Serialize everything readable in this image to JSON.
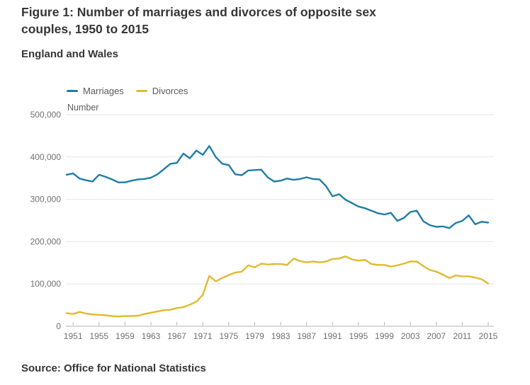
{
  "header": {
    "title": "Figure 1: Number of marriages and divorces of opposite sex couples, 1950 to 2015",
    "subtitle": "England and Wales"
  },
  "footer": {
    "source": "Source: Office for National Statistics"
  },
  "colors": {
    "marriages_line": "#207CA6",
    "divorces_line": "#E0BA2F",
    "gridline": "#e4e4e4",
    "axis": "#b3b3b3",
    "text_dark": "#363636",
    "text_gray": "#6f6f6f"
  },
  "chart_data": {
    "type": "line",
    "title": "Figure 1: Number of marriages and divorces of opposite sex couples, 1950 to 2015",
    "subtitle": "England and Wales",
    "xlabel": "",
    "ylabel": "Number",
    "xlim": [
      1950,
      2015
    ],
    "ylim": [
      0,
      500000
    ],
    "grid": true,
    "legend_position": "top-left",
    "x_ticks": [
      1951,
      1955,
      1959,
      1963,
      1967,
      1971,
      1975,
      1979,
      1983,
      1987,
      1991,
      1995,
      1999,
      2003,
      2007,
      2011,
      2015
    ],
    "y_ticks": [
      0,
      100000,
      200000,
      300000,
      400000,
      500000
    ],
    "y_tick_labels": [
      "0",
      "100,000",
      "200,000",
      "300,000",
      "400,000",
      "500,000"
    ],
    "x": [
      1950,
      1951,
      1952,
      1953,
      1954,
      1955,
      1956,
      1957,
      1958,
      1959,
      1960,
      1961,
      1962,
      1963,
      1964,
      1965,
      1966,
      1967,
      1968,
      1969,
      1970,
      1971,
      1972,
      1973,
      1974,
      1975,
      1976,
      1977,
      1978,
      1979,
      1980,
      1981,
      1982,
      1983,
      1984,
      1985,
      1986,
      1987,
      1988,
      1989,
      1990,
      1991,
      1992,
      1993,
      1994,
      1995,
      1996,
      1997,
      1998,
      1999,
      2000,
      2001,
      2002,
      2003,
      2004,
      2005,
      2006,
      2007,
      2008,
      2009,
      2010,
      2011,
      2012,
      2013,
      2014,
      2015
    ],
    "series": [
      {
        "name": "Marriages",
        "color": "#207CA6",
        "values": [
          358000,
          361000,
          349000,
          345000,
          342000,
          358000,
          353000,
          347000,
          340000,
          340000,
          344000,
          347000,
          348000,
          351000,
          359000,
          371000,
          384000,
          386000,
          408000,
          397000,
          415000,
          405000,
          426000,
          400000,
          384000,
          381000,
          359000,
          357000,
          368000,
          369000,
          370000,
          352000,
          342000,
          344000,
          349000,
          346000,
          348000,
          352000,
          348000,
          347000,
          331000,
          307000,
          312000,
          299000,
          291000,
          283000,
          279000,
          273000,
          267000,
          264000,
          268000,
          249000,
          256000,
          270000,
          273000,
          248000,
          239000,
          235000,
          236000,
          232000,
          244000,
          249000,
          262000,
          241000,
          247000,
          245000
        ]
      },
      {
        "name": "Divorces",
        "color": "#E0BA2F",
        "values": [
          31000,
          29000,
          34000,
          30000,
          28000,
          27000,
          26000,
          24000,
          23000,
          24000,
          24000,
          25000,
          29000,
          32000,
          35000,
          38000,
          39000,
          43000,
          45000,
          51000,
          58000,
          74000,
          119000,
          106000,
          114000,
          121000,
          127000,
          129000,
          144000,
          139000,
          148000,
          146000,
          147000,
          147000,
          145000,
          160000,
          154000,
          151000,
          153000,
          151000,
          153000,
          159000,
          160000,
          165000,
          158000,
          155000,
          157000,
          147000,
          145000,
          145000,
          141000,
          144000,
          148000,
          153000,
          153000,
          142000,
          133000,
          129000,
          122000,
          114000,
          120000,
          118000,
          118000,
          115000,
          111000,
          101000
        ]
      }
    ]
  }
}
